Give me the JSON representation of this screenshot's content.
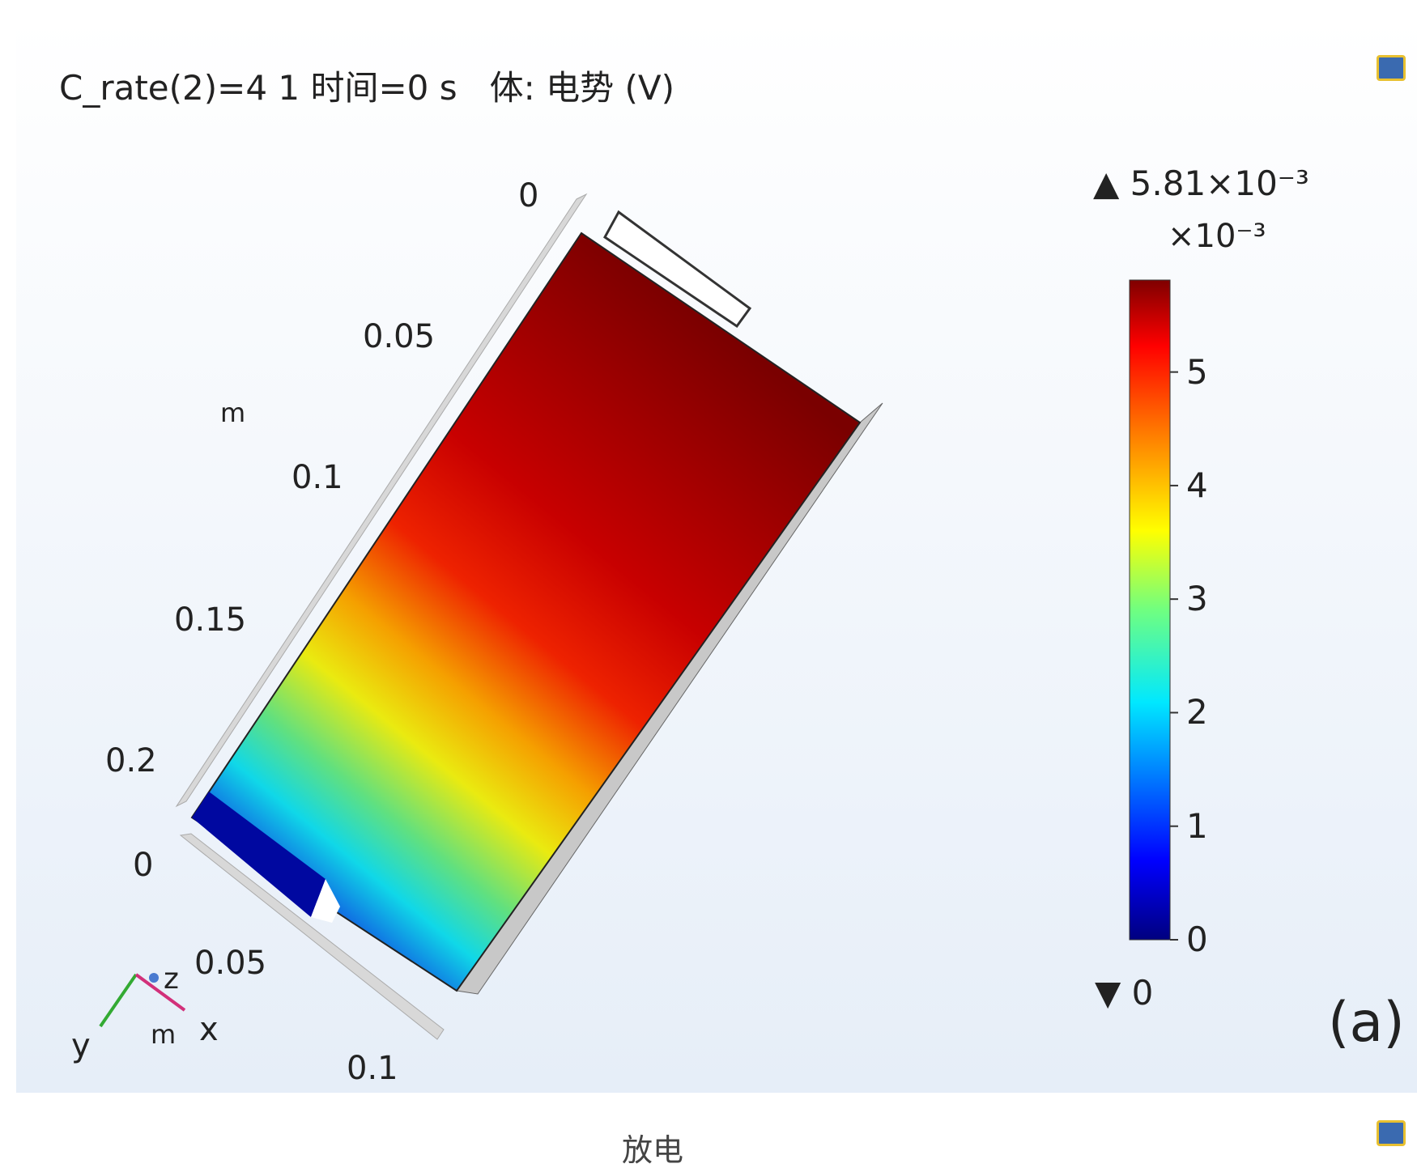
{
  "title": "C_rate(2)=4 1 时间=0 s   体: 电势 (V)",
  "colorbar": {
    "max_label": "▲ 5.81×10⁻³",
    "scale_label": "×10⁻³",
    "min_label": "▼ 0",
    "lim": [
      0,
      5.81
    ],
    "ticks": [
      0,
      1,
      2,
      3,
      4,
      5
    ]
  },
  "axes": {
    "upper": {
      "unit": "m",
      "labels": [
        "0",
        "0.05",
        "0.1",
        "0.15",
        "0.2"
      ]
    },
    "lower": {
      "labels": [
        "0",
        "0.05",
        "0.1"
      ]
    }
  },
  "triad": {
    "z": "z",
    "y": "y",
    "x": "x",
    "unit": "m"
  },
  "panel_label": "(a)",
  "tab": "放电"
}
